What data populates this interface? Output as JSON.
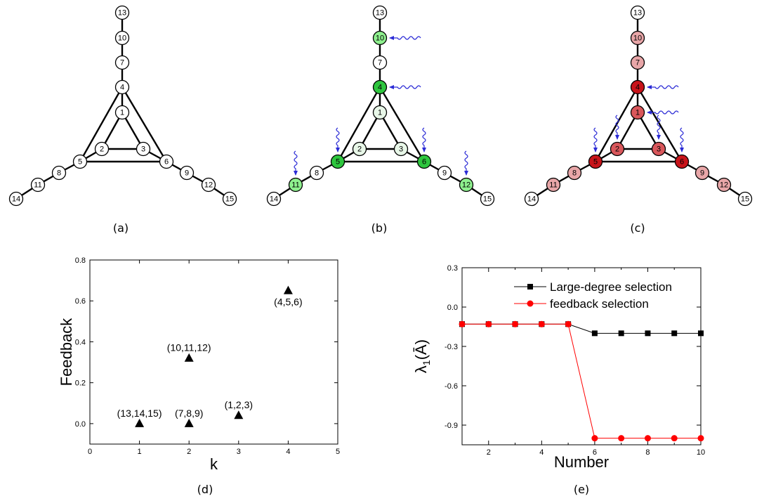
{
  "network": {
    "node_labels": [
      "1",
      "2",
      "3",
      "4",
      "5",
      "6",
      "7",
      "8",
      "9",
      "10",
      "11",
      "12",
      "13",
      "14",
      "15"
    ],
    "edges": [
      [
        1,
        2
      ],
      [
        2,
        3
      ],
      [
        3,
        1
      ],
      [
        4,
        5
      ],
      [
        5,
        6
      ],
      [
        6,
        4
      ],
      [
        1,
        4
      ],
      [
        2,
        5
      ],
      [
        3,
        6
      ],
      [
        4,
        7
      ],
      [
        7,
        10
      ],
      [
        10,
        13
      ],
      [
        5,
        8
      ],
      [
        8,
        11
      ],
      [
        11,
        14
      ],
      [
        6,
        9
      ],
      [
        9,
        12
      ],
      [
        12,
        15
      ]
    ],
    "panels": [
      {
        "label": "(a)",
        "fills": {
          "default": "#ffffff"
        },
        "arrows": []
      },
      {
        "label": "(b)",
        "fills": {
          "default": "#ffffff",
          "1": "#e8f7e8",
          "2": "#e8f7e8",
          "3": "#e8f7e8",
          "4": "#2ec63e",
          "5": "#2ec63e",
          "6": "#2ec63e",
          "10": "#8ef08e",
          "11": "#8ef08e",
          "12": "#8ef08e"
        },
        "arrows": [
          {
            "node": 10,
            "from": "right"
          },
          {
            "node": 4,
            "from": "right"
          },
          {
            "node": 5,
            "from": "top"
          },
          {
            "node": 6,
            "from": "top"
          },
          {
            "node": 11,
            "from": "top"
          },
          {
            "node": 12,
            "from": "top"
          }
        ]
      },
      {
        "label": "(c)",
        "fills": {
          "default": "#ffffff",
          "1": "#d9575b",
          "2": "#d9575b",
          "3": "#d9575b",
          "4": "#c8141a",
          "5": "#c8141a",
          "6": "#c8141a",
          "7": "#e8a6a8",
          "8": "#e8a6a8",
          "9": "#e8a6a8",
          "10": "#e8a6a8",
          "11": "#e8a6a8",
          "12": "#e8a6a8"
        },
        "arrows": [
          {
            "node": 4,
            "from": "right"
          },
          {
            "node": 1,
            "from": "right"
          },
          {
            "node": 5,
            "from": "top"
          },
          {
            "node": 2,
            "from": "top"
          },
          {
            "node": 3,
            "from": "top"
          },
          {
            "node": 6,
            "from": "top"
          }
        ]
      }
    ],
    "arrow_color": "#2b2bd6"
  },
  "chart_data": [
    {
      "panel": "(d)",
      "type": "scatter",
      "xlabel": "k",
      "ylabel": "Feedback",
      "xlim": [
        0,
        5
      ],
      "ylim": [
        -0.1,
        0.8
      ],
      "xticks": [
        "0",
        "1",
        "2",
        "3",
        "4",
        "5"
      ],
      "yticks": [
        "0.0",
        "0.2",
        "0.4",
        "0.6",
        "0.8"
      ],
      "points": [
        {
          "x": 1,
          "y": 0.0,
          "label": "(13,14,15)"
        },
        {
          "x": 2,
          "y": 0.0,
          "label": "(7,8,9)"
        },
        {
          "x": 2,
          "y": 0.32,
          "label": "(10,11,12)"
        },
        {
          "x": 3,
          "y": 0.04,
          "label": "(1,2,3)"
        },
        {
          "x": 4,
          "y": 0.65,
          "label": "(4,5,6)"
        }
      ],
      "marker": "triangle",
      "grid": false
    },
    {
      "panel": "(e)",
      "type": "line",
      "xlabel": "Number",
      "ylabel_main": "λ",
      "ylabel_sub": "1",
      "ylabel_paren": "(Ā)",
      "xlim": [
        1,
        10
      ],
      "ylim": [
        -1.05,
        0.3
      ],
      "xticks": [
        "2",
        "4",
        "6",
        "8",
        "10"
      ],
      "yticks": [
        "0.3",
        "0.0",
        "-0.3",
        "-0.6",
        "-0.9"
      ],
      "x": [
        1,
        2,
        3,
        4,
        5,
        6,
        7,
        8,
        9,
        10
      ],
      "series": [
        {
          "name": "Large-degree selection",
          "color": "#000000",
          "marker": "square",
          "values": [
            -0.13,
            -0.13,
            -0.13,
            -0.13,
            -0.13,
            -0.2,
            -0.2,
            -0.2,
            -0.2,
            -0.2
          ]
        },
        {
          "name": "feedback selection",
          "color": "#ff0000",
          "marker": "circle",
          "values": [
            -0.13,
            -0.13,
            -0.13,
            -0.13,
            -0.13,
            -1.0,
            -1.0,
            -1.0,
            -1.0,
            -1.0
          ]
        }
      ],
      "legend_position": "top-right",
      "grid": false
    }
  ],
  "panel_labels": {
    "d": "(d)",
    "e": "(e)"
  }
}
